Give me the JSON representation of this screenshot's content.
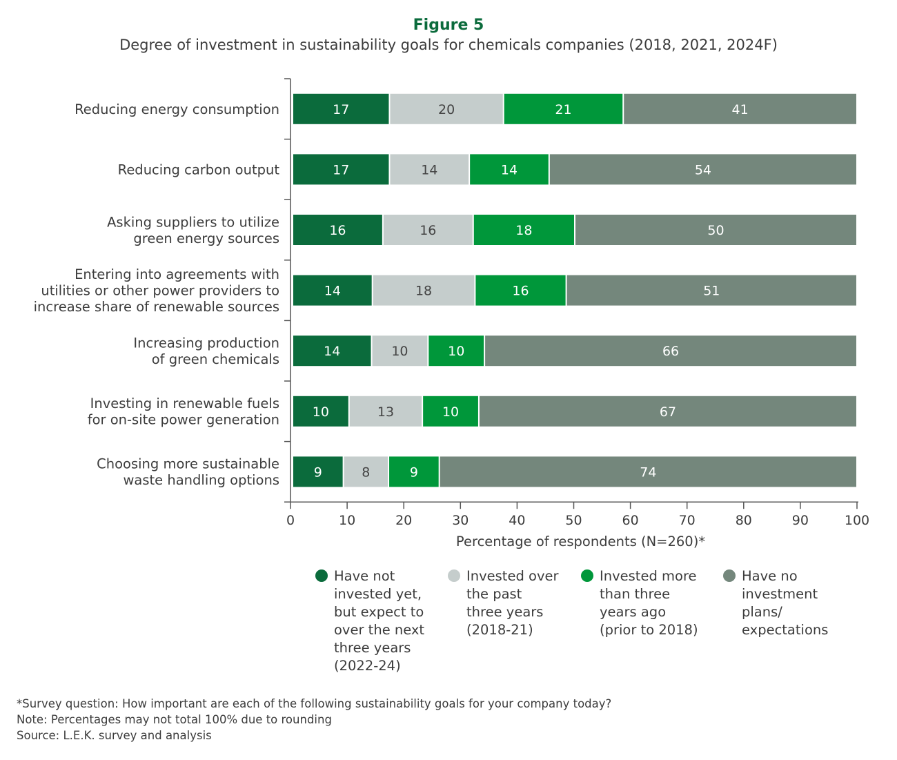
{
  "chart_data": {
    "type": "bar",
    "orientation": "horizontal",
    "stacked": true,
    "title": "Figure 5",
    "subtitle": "Degree of investment in sustainability goals for chemicals companies (2018, 2021, 2024F)",
    "xlabel": "Percentage of respondents (N=260)*",
    "ylabel": "",
    "xlim": [
      0,
      100
    ],
    "xticks": [
      0,
      10,
      20,
      30,
      40,
      50,
      60,
      70,
      80,
      90,
      100
    ],
    "grid": false,
    "legend_position": "bottom",
    "categories": [
      [
        "Reducing energy consumption"
      ],
      [
        "Reducing carbon output"
      ],
      [
        "Asking suppliers to utilize",
        "green energy sources"
      ],
      [
        "Entering into agreements with",
        "utilities or other power providers to",
        "increase share of renewable sources"
      ],
      [
        "Increasing production",
        "of green chemicals"
      ],
      [
        "Investing in renewable fuels",
        "for on-site power generation"
      ],
      [
        "Choosing more sustainable",
        "waste handling options"
      ]
    ],
    "series": [
      {
        "name": [
          "Have not",
          "invested yet,",
          "but expect to",
          "over the next",
          "three years",
          "(2022-24)"
        ],
        "color": "#0b6b3c",
        "label_color": "#ffffff",
        "values": [
          17,
          17,
          16,
          14,
          14,
          10,
          9
        ]
      },
      {
        "name": [
          "Invested over",
          "the past",
          "three years",
          "(2018-21)"
        ],
        "color": "#c5cdcc",
        "label_color": "#444444",
        "values": [
          20,
          14,
          16,
          18,
          10,
          13,
          8
        ]
      },
      {
        "name": [
          "Invested more",
          "than three",
          "years ago",
          "(prior to 2018)"
        ],
        "color": "#00973a",
        "label_color": "#ffffff",
        "values": [
          21,
          14,
          18,
          16,
          10,
          10,
          9
        ]
      },
      {
        "name": [
          "Have no",
          "investment",
          "plans/",
          "expectations"
        ],
        "color": "#74877c",
        "label_color": "#ffffff",
        "values": [
          41,
          54,
          50,
          51,
          66,
          67,
          74
        ]
      }
    ]
  },
  "notes": [
    "*Survey question: How important are each of the following sustainability goals for your company today?",
    "Note: Percentages may not total 100% due to rounding",
    "Source: L.E.K. survey and analysis"
  ]
}
